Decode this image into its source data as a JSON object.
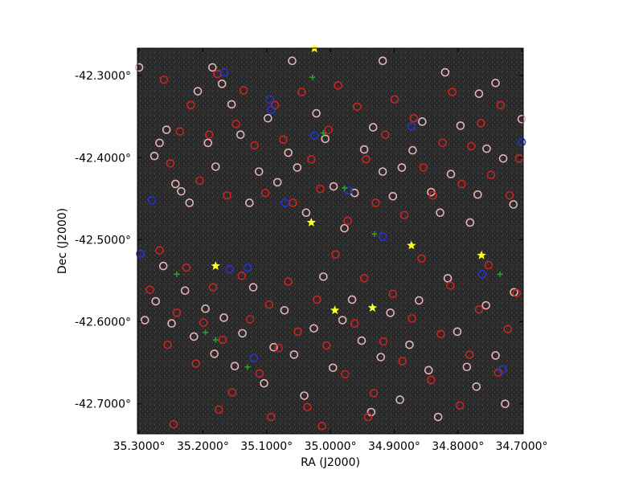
{
  "chart_data": {
    "type": "scatter",
    "title": "",
    "xlabel": "RA (J2000)",
    "ylabel": "Dec (J2000)",
    "x_reversed": true,
    "xlim": [
      35.3026,
      34.6976
    ],
    "ylim": [
      -42.7365,
      -42.2666
    ],
    "x_ticks": [
      {
        "value": 35.3,
        "label": "35.3000°"
      },
      {
        "value": 35.2,
        "label": "35.2000°"
      },
      {
        "value": 35.1,
        "label": "35.1000°"
      },
      {
        "value": 35.0,
        "label": "35.0000°"
      },
      {
        "value": 34.9,
        "label": "34.9000°"
      },
      {
        "value": 34.8,
        "label": "34.8000°"
      },
      {
        "value": 34.7,
        "label": "34.7000°"
      }
    ],
    "y_ticks": [
      {
        "value": -42.3,
        "label": "-42.3000°"
      },
      {
        "value": -42.4,
        "label": "-42.4000°"
      },
      {
        "value": -42.5,
        "label": "-42.5000°"
      },
      {
        "value": -42.6,
        "label": "-42.6000°"
      },
      {
        "value": -42.7,
        "label": "-42.7000°"
      }
    ],
    "background": "#2b2b2b",
    "grid": false,
    "series": [
      {
        "marker": "circle",
        "color": "#e8b4b8",
        "points": [
          [
            35.276,
            -42.398
          ],
          [
            35.268,
            -42.382
          ],
          [
            35.257,
            -42.366
          ],
          [
            35.243,
            -42.432
          ],
          [
            35.234,
            -42.441
          ],
          [
            35.221,
            -42.455
          ],
          [
            35.208,
            -42.319
          ],
          [
            35.192,
            -42.382
          ],
          [
            35.18,
            -42.411
          ],
          [
            35.17,
            -42.31
          ],
          [
            35.155,
            -42.335
          ],
          [
            35.141,
            -42.372
          ],
          [
            35.127,
            -42.455
          ],
          [
            35.112,
            -42.417
          ],
          [
            35.098,
            -42.352
          ],
          [
            35.083,
            -42.43
          ],
          [
            35.066,
            -42.394
          ],
          [
            35.052,
            -42.412
          ],
          [
            35.038,
            -42.467
          ],
          [
            35.022,
            -42.346
          ],
          [
            35.008,
            -42.377
          ],
          [
            34.995,
            -42.435
          ],
          [
            34.978,
            -42.486
          ],
          [
            34.962,
            -42.443
          ],
          [
            34.947,
            -42.39
          ],
          [
            34.933,
            -42.363
          ],
          [
            34.918,
            -42.417
          ],
          [
            34.902,
            -42.447
          ],
          [
            34.888,
            -42.412
          ],
          [
            34.871,
            -42.391
          ],
          [
            34.856,
            -42.356
          ],
          [
            34.842,
            -42.442
          ],
          [
            34.828,
            -42.467
          ],
          [
            34.811,
            -42.42
          ],
          [
            34.796,
            -42.361
          ],
          [
            34.781,
            -42.479
          ],
          [
            34.769,
            -42.445
          ],
          [
            34.755,
            -42.389
          ],
          [
            34.741,
            -42.309
          ],
          [
            34.729,
            -42.401
          ],
          [
            34.713,
            -42.457
          ],
          [
            35.291,
            -42.598
          ],
          [
            35.274,
            -42.575
          ],
          [
            35.262,
            -42.532
          ],
          [
            35.249,
            -42.602
          ],
          [
            35.228,
            -42.562
          ],
          [
            35.214,
            -42.618
          ],
          [
            35.196,
            -42.584
          ],
          [
            35.182,
            -42.639
          ],
          [
            35.167,
            -42.595
          ],
          [
            35.15,
            -42.654
          ],
          [
            35.138,
            -42.614
          ],
          [
            35.121,
            -42.558
          ],
          [
            35.104,
            -42.675
          ],
          [
            35.089,
            -42.631
          ],
          [
            35.072,
            -42.586
          ],
          [
            35.057,
            -42.64
          ],
          [
            35.041,
            -42.69
          ],
          [
            35.026,
            -42.608
          ],
          [
            35.011,
            -42.545
          ],
          [
            34.996,
            -42.656
          ],
          [
            34.981,
            -42.598
          ],
          [
            34.966,
            -42.573
          ],
          [
            34.951,
            -42.623
          ],
          [
            34.936,
            -42.71
          ],
          [
            34.921,
            -42.643
          ],
          [
            34.906,
            -42.589
          ],
          [
            34.891,
            -42.695
          ],
          [
            34.876,
            -42.628
          ],
          [
            34.861,
            -42.574
          ],
          [
            34.846,
            -42.659
          ],
          [
            34.831,
            -42.716
          ],
          [
            34.816,
            -42.547
          ],
          [
            34.801,
            -42.612
          ],
          [
            34.786,
            -42.655
          ],
          [
            34.771,
            -42.679
          ],
          [
            34.756,
            -42.58
          ],
          [
            34.741,
            -42.641
          ],
          [
            34.726,
            -42.7
          ],
          [
            34.712,
            -42.564
          ],
          [
            35.3,
            -42.29
          ],
          [
            35.185,
            -42.29
          ],
          [
            35.06,
            -42.282
          ],
          [
            34.918,
            -42.282
          ],
          [
            34.82,
            -42.296
          ],
          [
            34.767,
            -42.322
          ],
          [
            34.7,
            -42.353
          ]
        ]
      },
      {
        "marker": "circle",
        "color": "#cc2222",
        "points": [
          [
            35.261,
            -42.305
          ],
          [
            35.251,
            -42.407
          ],
          [
            35.236,
            -42.368
          ],
          [
            35.219,
            -42.336
          ],
          [
            35.205,
            -42.428
          ],
          [
            35.19,
            -42.372
          ],
          [
            35.177,
            -42.298
          ],
          [
            35.162,
            -42.446
          ],
          [
            35.148,
            -42.359
          ],
          [
            35.136,
            -42.318
          ],
          [
            35.119,
            -42.385
          ],
          [
            35.102,
            -42.443
          ],
          [
            35.087,
            -42.336
          ],
          [
            35.074,
            -42.378
          ],
          [
            35.059,
            -42.455
          ],
          [
            35.045,
            -42.32
          ],
          [
            35.03,
            -42.402
          ],
          [
            35.016,
            -42.438
          ],
          [
            35.003,
            -42.366
          ],
          [
            34.988,
            -42.312
          ],
          [
            34.973,
            -42.477
          ],
          [
            34.958,
            -42.338
          ],
          [
            34.944,
            -42.402
          ],
          [
            34.929,
            -42.455
          ],
          [
            34.914,
            -42.372
          ],
          [
            34.899,
            -42.329
          ],
          [
            34.884,
            -42.47
          ],
          [
            34.869,
            -42.352
          ],
          [
            34.854,
            -42.412
          ],
          [
            34.839,
            -42.446
          ],
          [
            34.824,
            -42.382
          ],
          [
            34.809,
            -42.32
          ],
          [
            34.794,
            -42.432
          ],
          [
            34.779,
            -42.386
          ],
          [
            34.764,
            -42.358
          ],
          [
            34.748,
            -42.421
          ],
          [
            34.733,
            -42.336
          ],
          [
            34.719,
            -42.446
          ],
          [
            34.704,
            -42.401
          ],
          [
            35.283,
            -42.561
          ],
          [
            35.268,
            -42.513
          ],
          [
            35.255,
            -42.628
          ],
          [
            35.241,
            -42.589
          ],
          [
            35.226,
            -42.534
          ],
          [
            35.211,
            -42.651
          ],
          [
            35.199,
            -42.601
          ],
          [
            35.184,
            -42.558
          ],
          [
            35.169,
            -42.622
          ],
          [
            35.154,
            -42.686
          ],
          [
            35.139,
            -42.544
          ],
          [
            35.126,
            -42.597
          ],
          [
            35.111,
            -42.663
          ],
          [
            35.096,
            -42.579
          ],
          [
            35.081,
            -42.632
          ],
          [
            35.066,
            -42.551
          ],
          [
            35.051,
            -42.612
          ],
          [
            35.036,
            -42.704
          ],
          [
            35.021,
            -42.573
          ],
          [
            35.006,
            -42.629
          ],
          [
            34.992,
            -42.518
          ],
          [
            34.977,
            -42.664
          ],
          [
            34.962,
            -42.602
          ],
          [
            34.947,
            -42.547
          ],
          [
            34.932,
            -42.687
          ],
          [
            34.917,
            -42.624
          ],
          [
            34.902,
            -42.566
          ],
          [
            34.887,
            -42.648
          ],
          [
            34.872,
            -42.596
          ],
          [
            34.857,
            -42.523
          ],
          [
            34.842,
            -42.671
          ],
          [
            34.827,
            -42.615
          ],
          [
            34.812,
            -42.556
          ],
          [
            34.797,
            -42.702
          ],
          [
            34.782,
            -42.64
          ],
          [
            34.767,
            -42.585
          ],
          [
            34.752,
            -42.531
          ],
          [
            34.737,
            -42.662
          ],
          [
            34.722,
            -42.609
          ],
          [
            34.708,
            -42.565
          ],
          [
            35.246,
            -42.725
          ],
          [
            35.175,
            -42.707
          ],
          [
            35.093,
            -42.716
          ],
          [
            35.013,
            -42.727
          ],
          [
            34.941,
            -42.716
          ]
        ]
      },
      {
        "marker": "circle",
        "color": "#2233dd",
        "points": [
          [
            35.28,
            -42.452
          ],
          [
            35.298,
            -42.517
          ],
          [
            35.166,
            -42.296
          ],
          [
            35.158,
            -42.536
          ],
          [
            35.13,
            -42.534
          ],
          [
            35.095,
            -42.329
          ],
          [
            35.093,
            -42.342
          ],
          [
            35.071,
            -42.455
          ],
          [
            35.025,
            -42.373
          ],
          [
            34.972,
            -42.44
          ],
          [
            34.918,
            -42.496
          ],
          [
            34.873,
            -42.362
          ],
          [
            34.762,
            -42.542
          ],
          [
            34.7,
            -42.381
          ],
          [
            34.73,
            -42.658
          ],
          [
            35.12,
            -42.644
          ]
        ]
      },
      {
        "marker": "plus",
        "color": "#22aa22",
        "points": [
          [
            35.241,
            -42.542
          ],
          [
            35.196,
            -42.613
          ],
          [
            35.18,
            -42.622
          ],
          [
            35.011,
            -42.37
          ],
          [
            34.978,
            -42.437
          ],
          [
            34.931,
            -42.493
          ],
          [
            34.734,
            -42.542
          ],
          [
            35.13,
            -42.655
          ],
          [
            35.028,
            -42.302
          ]
        ]
      },
      {
        "marker": "star",
        "color": "#ffff22",
        "points": [
          [
            35.18,
            -42.532
          ],
          [
            35.03,
            -42.479
          ],
          [
            34.993,
            -42.586
          ],
          [
            34.934,
            -42.583
          ],
          [
            34.873,
            -42.507
          ],
          [
            34.763,
            -42.519
          ],
          [
            35.025,
            -42.267
          ]
        ]
      }
    ]
  }
}
